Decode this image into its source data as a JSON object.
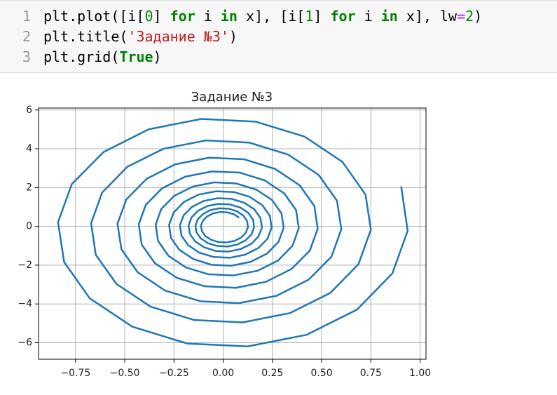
{
  "code": {
    "line_numbers": [
      1,
      2,
      3
    ],
    "lines": [
      [
        "plt.plot([i[",
        "0",
        "] ",
        "for",
        " i ",
        "in",
        " x], [i[",
        "1",
        "] ",
        "for",
        " i ",
        "in",
        " x], lw",
        "=",
        "2",
        ")"
      ],
      [
        "plt.title(",
        "'Задание №3'",
        ")"
      ],
      [
        "plt.grid(",
        "True",
        ")"
      ]
    ]
  },
  "chart_data": {
    "type": "line",
    "title": "Задание №3",
    "color": "#1f77b4",
    "grid": true,
    "xlim": [
      -0.938,
      1.03
    ],
    "ylim": [
      -6.85,
      6.1
    ],
    "xticks": [
      {
        "value": -0.75,
        "label": "−0.75"
      },
      {
        "value": -0.5,
        "label": "−0.50"
      },
      {
        "value": -0.25,
        "label": "−0.25"
      },
      {
        "value": 0,
        "label": "0.00"
      },
      0.25,
      {
        "value": 0.5,
        "label": "0.50"
      },
      0.75,
      {
        "value": 1,
        "label": "1.00"
      }
    ],
    "yticks": [
      {
        "value": -6,
        "label": "−6"
      },
      {
        "value": -4,
        "label": "−4"
      },
      {
        "value": -2,
        "label": "−2"
      },
      0,
      2,
      4,
      6
    ],
    "x": [
      0.904,
      0.937,
      0.859,
      0.68,
      0.424,
      0.124,
      -0.183,
      -0.462,
      -0.678,
      -0.808,
      -0.839,
      -0.769,
      -0.608,
      -0.379,
      -0.111,
      0.164,
      0.413,
      0.606,
      0.723,
      0.75,
      0.687,
      0.544,
      0.339,
      0.099,
      -0.147,
      -0.369,
      -0.542,
      -0.647,
      -0.671,
      -0.615,
      -0.487,
      -0.303,
      -0.089,
      0.131,
      0.33,
      0.485,
      0.578,
      0.6,
      0.55,
      0.435,
      0.271,
      0.079,
      -0.117,
      -0.295,
      -0.434,
      -0.517,
      -0.537,
      -0.492,
      -0.389,
      -0.243,
      -0.071,
      0.105,
      0.264,
      0.388,
      0.463,
      0.48,
      0.44,
      0.348,
      0.217,
      0.064,
      -0.094,
      -0.236,
      -0.347,
      -0.414,
      -0.429,
      -0.393,
      -0.311,
      -0.194,
      -0.057,
      0.084,
      0.211,
      0.31,
      0.37,
      0.384,
      0.352,
      0.279,
      0.174,
      0.051,
      -0.075,
      -0.189,
      -0.278,
      -0.331,
      -0.343,
      -0.315,
      -0.249,
      -0.155,
      -0.045,
      0.067,
      0.169,
      0.248,
      0.296,
      0.307,
      0.281,
      0.223,
      0.139,
      0.041,
      -0.06,
      -0.151,
      -0.222,
      -0.265,
      -0.275,
      -0.252,
      -0.199,
      -0.124,
      -0.036,
      0.054,
      0.135,
      0.199,
      0.237,
      0.246,
      0.225,
      0.178,
      0.111,
      0.033,
      -0.048,
      -0.121,
      -0.178,
      -0.212,
      -0.22,
      -0.201,
      -0.159,
      -0.099,
      -0.029,
      0.043,
      0.108,
      0.159,
      0.189,
      0.197,
      0.18,
      0.143,
      0.089,
      0.026,
      -0.038,
      -0.097,
      -0.142,
      -0.169,
      -0.176,
      -0.161,
      -0.128,
      -0.08,
      -0.023,
      0.034,
      0.087,
      0.127,
      0.152,
      0.157,
      0.144,
      0.114,
      0.071,
      0.021,
      -0.031,
      -0.077,
      -0.114,
      -0.136,
      -0.141,
      -0.129,
      -0.102,
      -0.064,
      -0.019,
      0.028,
      0.069,
      0.102,
      0.121,
      0.126,
      0.115,
      0.091,
      0.057,
      0.017,
      -0.025,
      -0.062,
      -0.091,
      -0.108,
      -0.113,
      -0.103,
      -0.082,
      -0.051,
      -0.015,
      0.022,
      0.055,
      0.081
    ],
    "values": [
      2.06,
      -0.23,
      -2.43,
      -4.29,
      -5.59,
      -6.19,
      -6.04,
      -5.17,
      -3.71,
      -1.84,
      0.21,
      2.18,
      3.83,
      5.0,
      5.54,
      5.4,
      4.63,
      3.32,
      1.64,
      -0.18,
      -1.95,
      -3.43,
      -4.47,
      -4.95,
      -4.83,
      -4.14,
      -2.97,
      -1.47,
      0.16,
      1.74,
      3.07,
      4.0,
      4.43,
      4.32,
      3.7,
      2.65,
      1.32,
      -0.15,
      -1.56,
      -2.74,
      -3.58,
      -3.96,
      -3.86,
      -3.31,
      -2.37,
      -1.18,
      0.13,
      1.39,
      2.45,
      3.2,
      3.54,
      3.46,
      2.96,
      2.12,
      1.05,
      -0.12,
      -1.25,
      -2.19,
      -2.86,
      -3.17,
      -3.09,
      -2.65,
      -1.9,
      -0.94,
      0.11,
      1.11,
      1.96,
      2.56,
      2.83,
      2.77,
      2.37,
      1.7,
      0.84,
      -0.09,
      -1.0,
      -1.76,
      -2.29,
      -2.53,
      -2.47,
      -2.12,
      -1.52,
      -0.75,
      0.08,
      0.89,
      1.57,
      2.05,
      2.27,
      2.21,
      1.89,
      1.36,
      0.67,
      -0.08,
      -0.8,
      -1.4,
      -1.83,
      -2.03,
      -1.98,
      -1.69,
      -1.22,
      -0.6,
      0.07,
      0.71,
      1.26,
      1.64,
      1.81,
      1.77,
      1.52,
      1.09,
      0.54,
      -0.06,
      -0.64,
      -1.12,
      -1.46,
      -1.62,
      -1.58,
      -1.36,
      -0.97,
      -0.48,
      0.05,
      0.57,
      1.0,
      1.31,
      1.45,
      1.42,
      1.21,
      0.87,
      0.43,
      -0.05,
      -0.51,
      -0.9,
      -1.17,
      -1.3,
      -1.27,
      -1.08,
      -0.78,
      -0.39,
      0.04,
      0.46,
      0.8,
      1.05,
      1.16,
      1.13,
      0.97,
      0.7,
      0.34,
      -0.04,
      -0.41,
      -0.72,
      -0.94,
      -1.04,
      -1.01,
      -0.87,
      -0.62,
      -0.31,
      0.03,
      0.37,
      0.64,
      0.84,
      0.93,
      0.91,
      0.78,
      0.56,
      0.28,
      -0.03,
      -0.33,
      -0.58,
      -0.75,
      -0.83,
      -0.81,
      -0.69,
      -0.5,
      -0.25,
      0.03,
      0.29,
      0.51,
      0.67,
      0.74,
      0.72,
      0.62,
      0.45
    ]
  }
}
